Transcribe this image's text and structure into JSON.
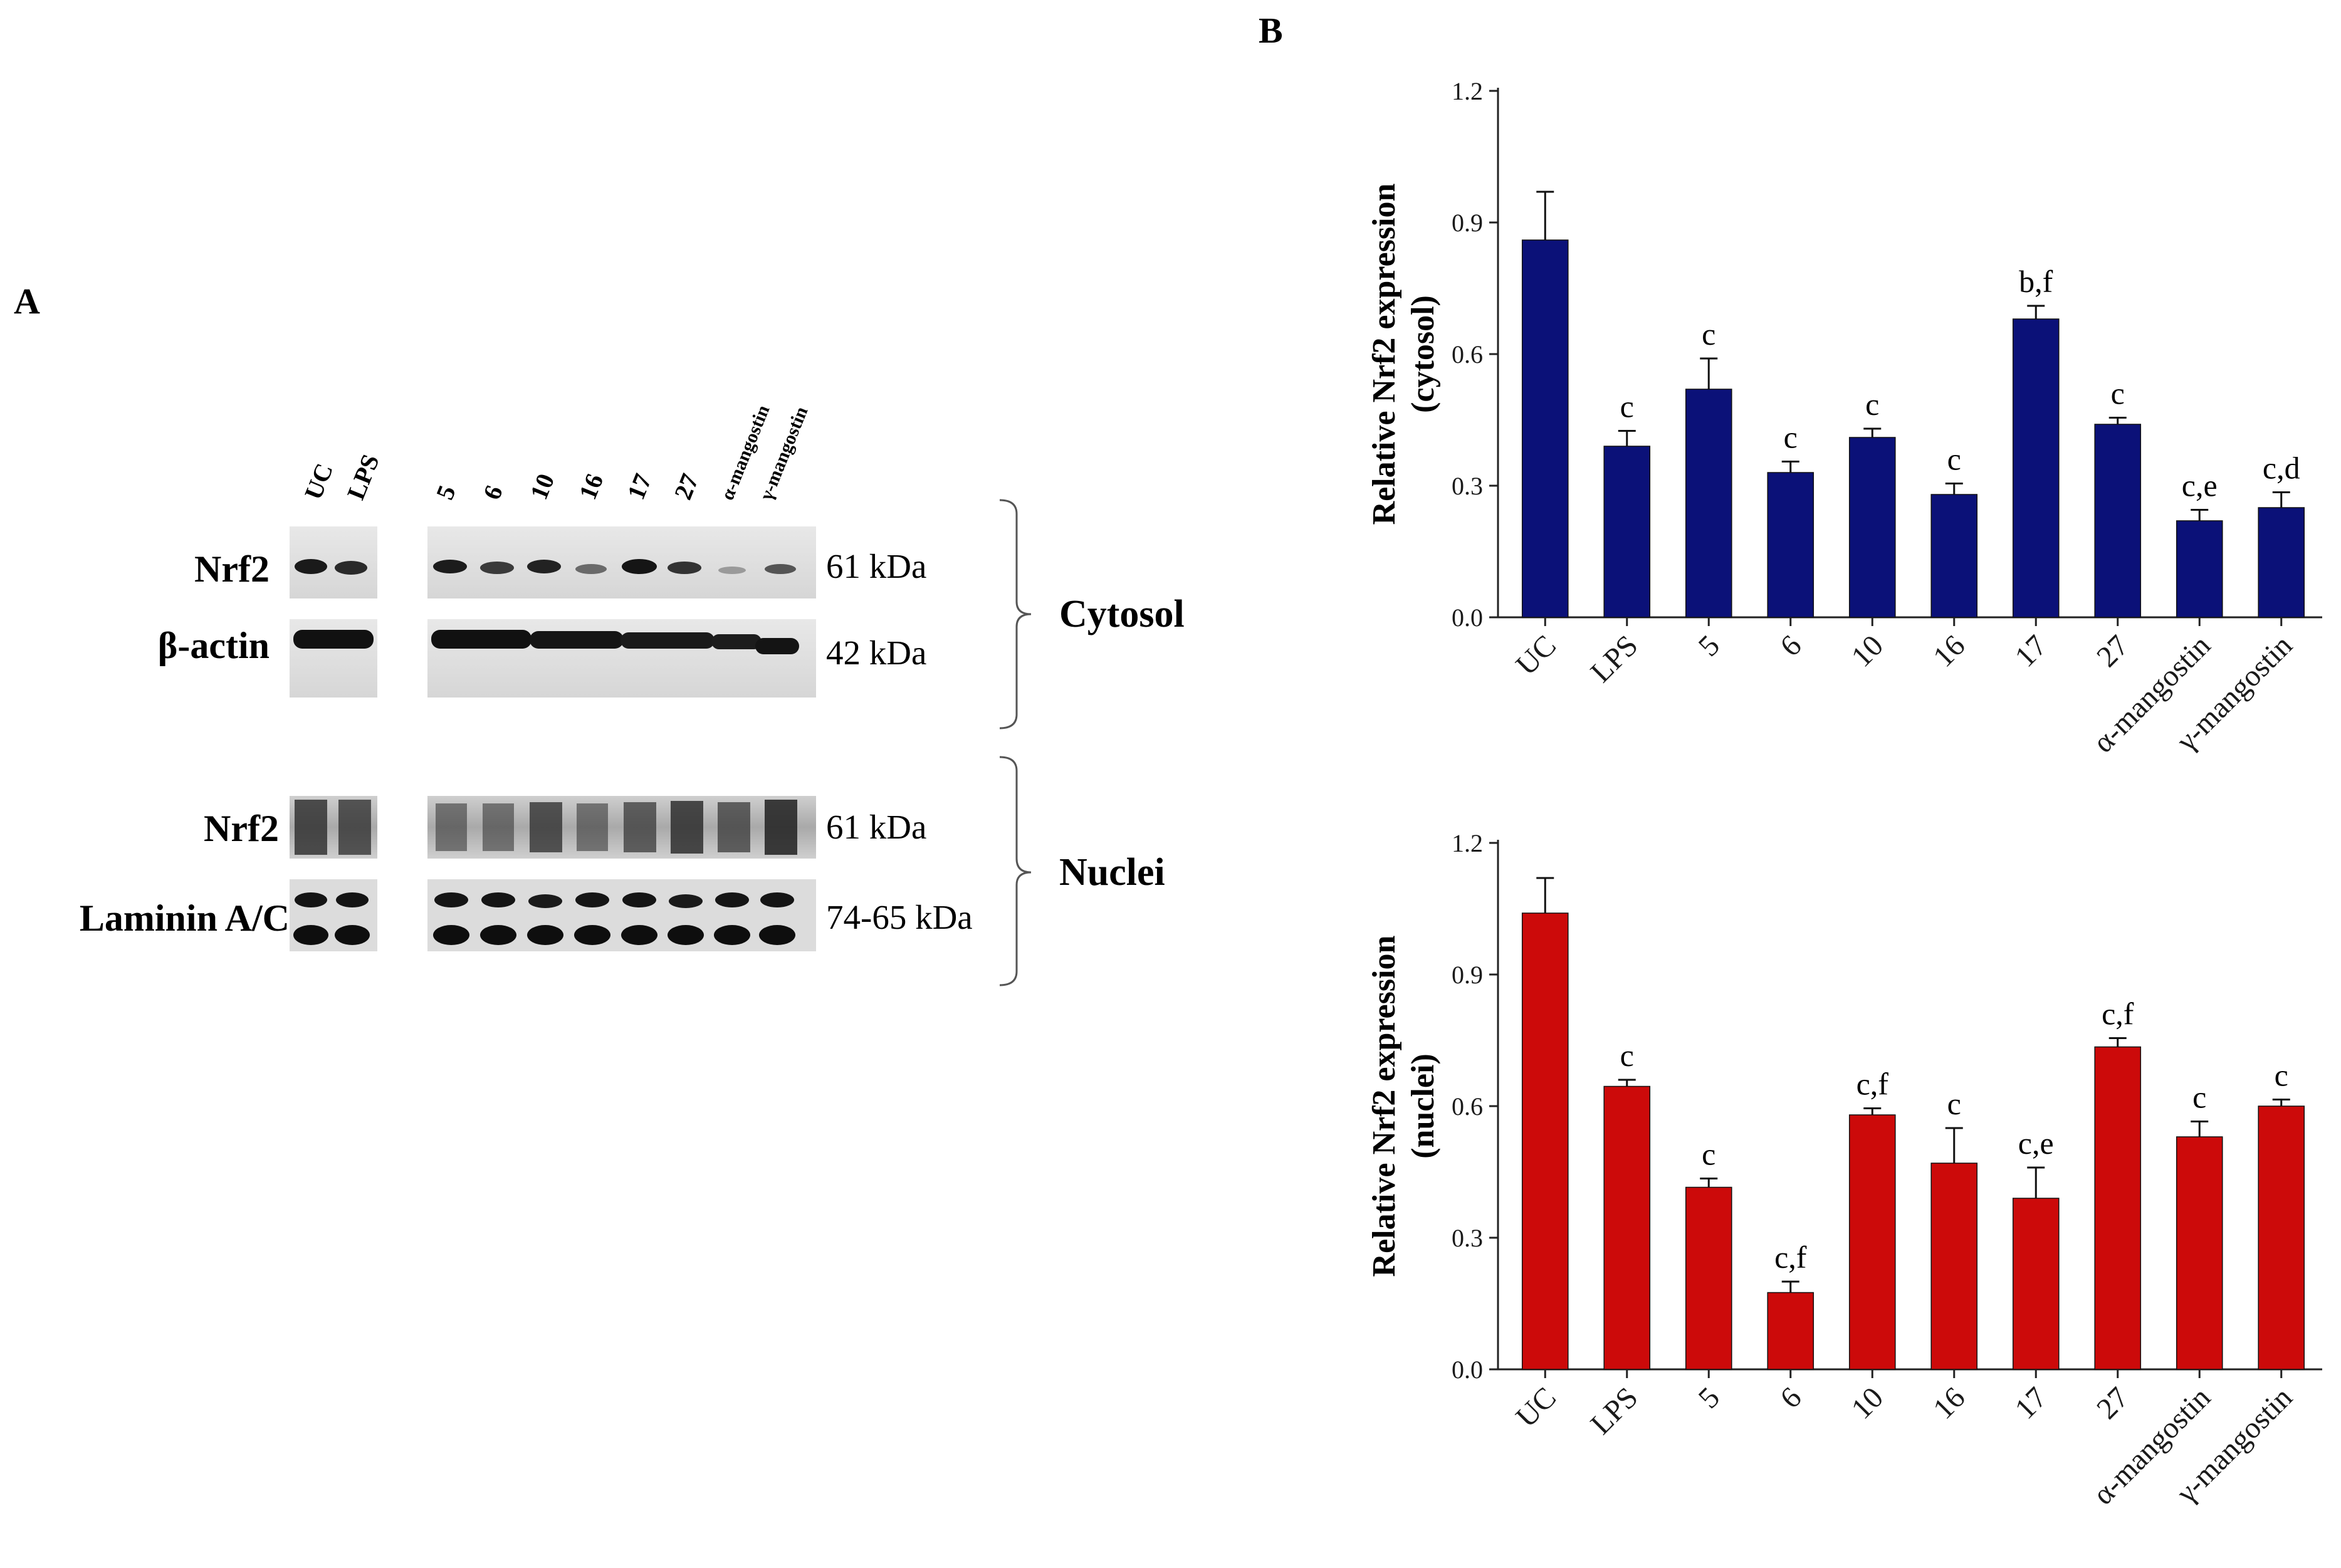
{
  "panel_a": {
    "label": "A",
    "lanes_left": [
      "UC",
      "LPS"
    ],
    "lanes_right": [
      "5",
      "6",
      "10",
      "16",
      "17",
      "27",
      "α-mangostin",
      "γ-mangostin"
    ],
    "blots": [
      {
        "label": "Nrf2",
        "kda": "61 kDa"
      },
      {
        "label": "β-actin",
        "kda": "42 kDa"
      },
      {
        "label": "Nrf2",
        "kda": "61 kDa"
      },
      {
        "label": "Laminin A/C",
        "kda": "74-65 kDa"
      }
    ],
    "compartments": [
      "Cytosol",
      "Nuclei"
    ]
  },
  "panel_b": {
    "label": "B"
  },
  "chart_data": [
    {
      "type": "bar",
      "title": "",
      "ylabel_line1": "Relative Nrf2 expression",
      "ylabel_line2": "(cytosol)",
      "xlabel": "",
      "categories": [
        "UC",
        "LPS",
        "5",
        "6",
        "10",
        "16",
        "17",
        "27",
        "α-mangostin",
        "γ-mangostin"
      ],
      "values": [
        0.86,
        0.39,
        0.52,
        0.33,
        0.41,
        0.28,
        0.68,
        0.44,
        0.22,
        0.25
      ],
      "errors": [
        0.11,
        0.035,
        0.07,
        0.025,
        0.02,
        0.025,
        0.03,
        0.015,
        0.025,
        0.035
      ],
      "annotations": [
        "",
        "c",
        "c",
        "c",
        "c",
        "c",
        "b,f",
        "c",
        "c,e",
        "c,d"
      ],
      "ylim": [
        0,
        1.2
      ],
      "yticks": [
        "0.0",
        "0.3",
        "0.6",
        "0.9",
        "1.2"
      ],
      "color": "#0b1178"
    },
    {
      "type": "bar",
      "title": "",
      "ylabel_line1": "Relative Nrf2 expression",
      "ylabel_line2": "(nuclei)",
      "xlabel": "",
      "categories": [
        "UC",
        "LPS",
        "5",
        "6",
        "10",
        "16",
        "17",
        "27",
        "α-mangostin",
        "γ-mangostin"
      ],
      "values": [
        1.04,
        0.645,
        0.415,
        0.175,
        0.58,
        0.47,
        0.39,
        0.735,
        0.53,
        0.6
      ],
      "errors": [
        0.08,
        0.015,
        0.02,
        0.025,
        0.015,
        0.08,
        0.07,
        0.02,
        0.035,
        0.015
      ],
      "annotations": [
        "",
        "c",
        "c",
        "c,f",
        "c,f",
        "c",
        "c,e",
        "c,f",
        "c",
        "c"
      ],
      "ylim": [
        0,
        1.2
      ],
      "yticks": [
        "0.0",
        "0.3",
        "0.6",
        "0.9",
        "1.2"
      ],
      "color": "#cc0a0a"
    }
  ]
}
